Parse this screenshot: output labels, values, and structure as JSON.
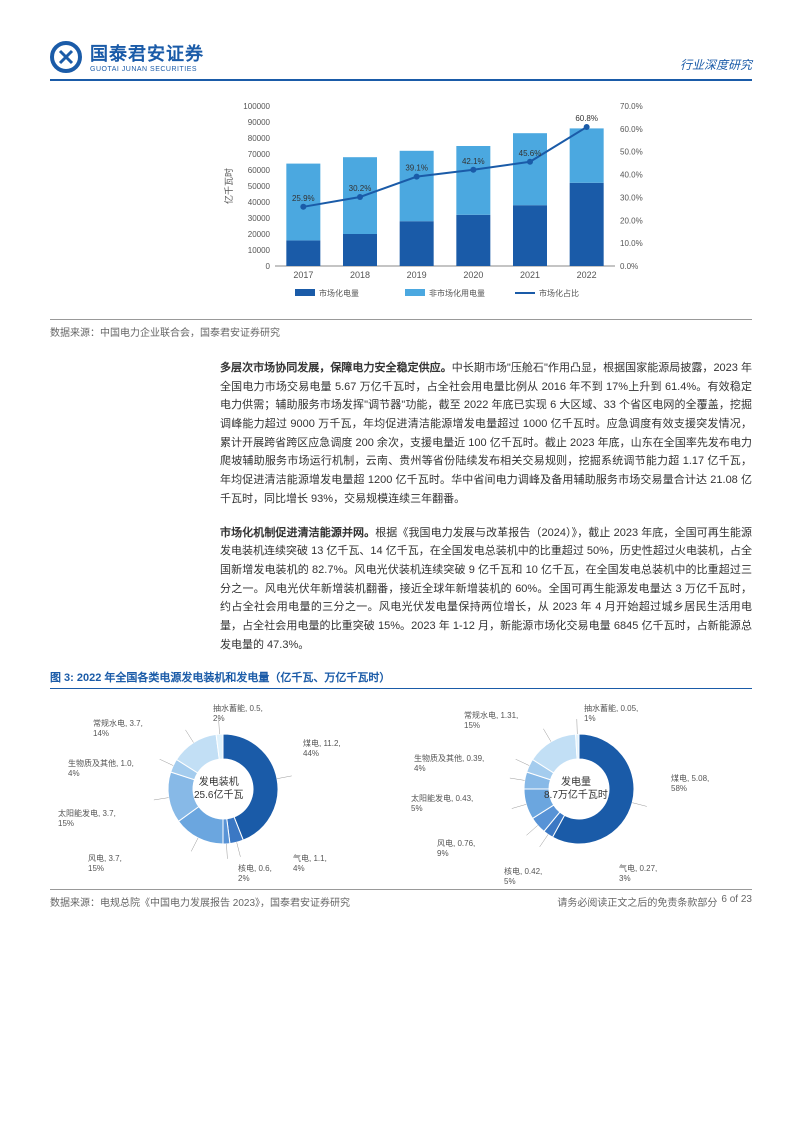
{
  "logo": {
    "cn": "国泰君安证券",
    "en": "GUOTAI JUNAN SECURITIES"
  },
  "header_right": "行业深度研究",
  "chart1": {
    "type": "bar+line",
    "categories": [
      "2017",
      "2018",
      "2019",
      "2020",
      "2021",
      "2022"
    ],
    "series": [
      {
        "name": "市场化电量",
        "color": "#1a5ba8",
        "values": [
          16000,
          20000,
          28000,
          32000,
          38000,
          52000
        ]
      },
      {
        "name": "非市场化用电量",
        "color": "#4ba8e0",
        "values": [
          48000,
          48000,
          44000,
          43000,
          45000,
          34000
        ]
      }
    ],
    "line": {
      "name": "市场化占比",
      "color": "#1a5ba8",
      "values": [
        25.9,
        30.2,
        39.1,
        42.1,
        45.6,
        60.8
      ],
      "labels": [
        "25.9%",
        "30.2%",
        "39.1%",
        "42.1%",
        "45.6%",
        "60.8%"
      ]
    },
    "y1": {
      "label": "亿千瓦时",
      "max": 100000,
      "ticks": [
        0,
        10000,
        20000,
        30000,
        40000,
        50000,
        60000,
        70000,
        80000,
        90000,
        100000
      ]
    },
    "y2": {
      "max": 70,
      "ticks": [
        "0.0%",
        "10.0%",
        "20.0%",
        "30.0%",
        "40.0%",
        "50.0%",
        "60.0%",
        "70.0%"
      ]
    },
    "legend": [
      "市场化电量",
      "非市场化用电量",
      "市场化占比"
    ]
  },
  "source1": "数据来源：中国电力企业联合会，国泰君安证券研究",
  "para1_lead": "多层次市场协同发展，保障电力安全稳定供应。",
  "para1": "中长期市场\"压舱石\"作用凸显，根据国家能源局披露，2023 年全国电力市场交易电量 5.67 万亿千瓦时，占全社会用电量比例从 2016 年不到 17%上升到 61.4%。有效稳定电力供需；辅助服务市场发挥\"调节器\"功能，截至 2022 年底已实现 6 大区域、33 个省区电网的全覆盖，挖掘调峰能力超过 9000 万千瓦，年均促进清洁能源增发电量超过 1000 亿千瓦时。应急调度有效支援突发情况，累计开展跨省跨区应急调度 200 余次，支援电量近 100 亿千瓦时。截止 2023 年底，山东在全国率先发布电力爬坡辅助服务市场运行机制，云南、贵州等省份陆续发布相关交易规则，挖掘系统调节能力超 1.17 亿千瓦，年均促进清洁能源增发电量超 1200 亿千瓦时。华中省间电力调峰及备用辅助服务市场交易量合计达 21.08 亿千瓦时，同比增长 93%，交易规模连续三年翻番。",
  "para2_lead": "市场化机制促进清洁能源并网。",
  "para2": "根据《我国电力发展与改革报告（2024）》，截止 2023 年底，全国可再生能源发电装机连续突破 13 亿千瓦、14 亿千瓦，在全国发电总装机中的比重超过 50%，历史性超过火电装机，占全国新增发电装机的 82.7%。风电光伏装机连续突破 9 亿千瓦和 10 亿千瓦，在全国发电总装机中的比重超过三分之一。风电光伏年新增装机翻番，接近全球年新增装机的 60%。全国可再生能源发电量达 3 万亿千瓦时，约占全社会用电量的三分之一。风电光伏发电量保持两位增长，从 2023 年 4 月开始超过城乡居民生活用电量，占全社会用电量的比重突破 15%。2023 年 1-12 月，新能源市场化交易电量 6845 亿千瓦时，占新能源总发电量的 47.3%。",
  "fig3_title": "图 3:  2022 年全国各类电源发电装机和发电量（亿千瓦、万亿千瓦时）",
  "pie1": {
    "type": "donut",
    "center": [
      "发电装机",
      "25.6亿千瓦"
    ],
    "slices": [
      {
        "label": "煤电, 11.2, 44%",
        "value": 44,
        "color": "#1a5ba8",
        "lx": 250,
        "ly": 40
      },
      {
        "label": "气电, 1.1, 4%",
        "value": 4,
        "color": "#3b78c4",
        "lx": 240,
        "ly": 155
      },
      {
        "label": "核电, 0.6, 2%",
        "value": 2,
        "color": "#5893d6",
        "lx": 185,
        "ly": 165
      },
      {
        "label": "风电, 3.7, 15%",
        "value": 15,
        "color": "#6ba6df",
        "lx": 35,
        "ly": 155
      },
      {
        "label": "太阳能发电, 3.7, 15%",
        "value": 15,
        "color": "#87b9e7",
        "lx": 5,
        "ly": 110
      },
      {
        "label": "生物质及其他, 1.0, 4%",
        "value": 4,
        "color": "#a4ccee",
        "lx": 15,
        "ly": 60
      },
      {
        "label": "常规水电, 3.7, 14%",
        "value": 14,
        "color": "#c2dff5",
        "lx": 40,
        "ly": 20
      },
      {
        "label": "抽水蓄能, 0.5, 2%",
        "value": 2,
        "color": "#e0f2fc",
        "lx": 160,
        "ly": 5
      }
    ]
  },
  "pie2": {
    "type": "donut",
    "center": [
      "发电量",
      "8.7万亿千瓦时"
    ],
    "slices": [
      {
        "label": "煤电, 5.08, 58%",
        "value": 58,
        "color": "#1a5ba8",
        "lx": 262,
        "ly": 75
      },
      {
        "label": "气电, 0.27, 3%",
        "value": 3,
        "color": "#3b78c4",
        "lx": 210,
        "ly": 165
      },
      {
        "label": "核电, 0.42, 5%",
        "value": 5,
        "color": "#5893d6",
        "lx": 95,
        "ly": 168
      },
      {
        "label": "风电, 0.76, 9%",
        "value": 9,
        "color": "#6ba6df",
        "lx": 28,
        "ly": 140
      },
      {
        "label": "太阳能发电, 0.43, 5%",
        "value": 5,
        "color": "#87b9e7",
        "lx": 2,
        "ly": 95
      },
      {
        "label": "生物质及其他, 0.39, 4%",
        "value": 4,
        "color": "#a4ccee",
        "lx": 5,
        "ly": 55
      },
      {
        "label": "常规水电, 1.31, 15%",
        "value": 15,
        "color": "#c2dff5",
        "lx": 55,
        "ly": 12
      },
      {
        "label": "抽水蓄能, 0.05, 1%",
        "value": 1,
        "color": "#e0f2fc",
        "lx": 175,
        "ly": 5
      }
    ]
  },
  "source2": "数据来源：电规总院《中国电力发展报告 2023》，国泰君安证券研究",
  "footer": {
    "left": "",
    "mid": "请务必阅读正文之后的免责条款部分",
    "right": "6 of 23"
  }
}
